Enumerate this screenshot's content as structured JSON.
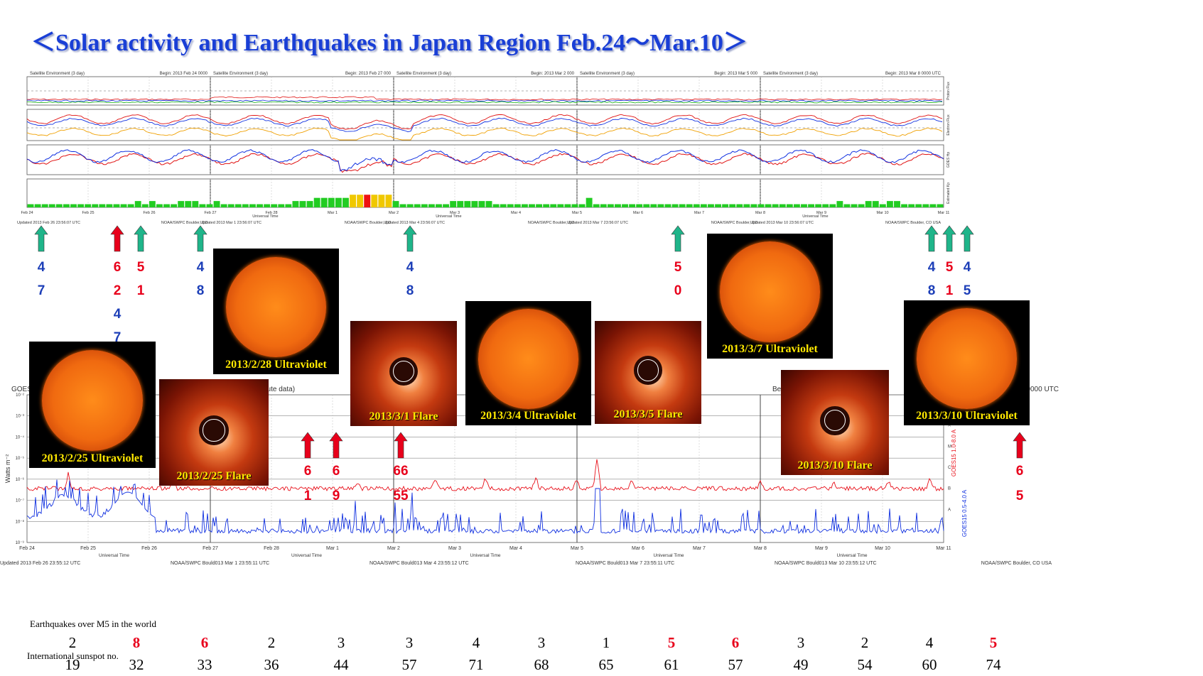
{
  "title": "＜Solar activity and Earthquakes in Japan Region Feb.24～Mar.10＞",
  "colors": {
    "title": "#1a3fd6",
    "eq_red": "#e8001b",
    "eq_blue": "#1d3fb8",
    "arrow_green": "#1fb58a",
    "arrow_red": "#e8001b",
    "caption": "#ffe800"
  },
  "goes_top": {
    "panels": [
      {
        "header_left": "Satellite Environment (3 day)",
        "header_right": "Begin:  2013 Feb 24 0000"
      },
      {
        "header_left": "Satellite Environment (3 day)",
        "header_right": "Begin:  2013 Feb 27 000"
      },
      {
        "header_left": "Satellite Environment (3 day)",
        "header_right": "Begin:  2013 Mar 2 000"
      },
      {
        "header_left": "Satellite Environment (3 day)",
        "header_right": "Begin:  2013 Mar 5 000"
      },
      {
        "header_left": "Satellite Environment (3 day)",
        "header_right": "Begin:  2013 Mar 8 0000 UTC"
      }
    ],
    "right_labels": [
      "Proton Flux",
      "Electron Flux",
      "GOES Hp",
      "Estimated Kp"
    ],
    "date_ticks": [
      "Feb 24",
      "Feb 25",
      "Feb 26",
      "Feb 27",
      "Feb 28",
      "Mar 1",
      "Mar 2",
      "Mar 3",
      "Mar 4",
      "Mar 5",
      "Mar 6",
      "Mar 7",
      "Mar 8",
      "Mar 9",
      "Mar 10",
      "Mar 11"
    ],
    "universal_time": "Universal Time",
    "footer": [
      "Updated 2013 Feb 26 23:56:07 UTC",
      "NOAA/SWPC Boulder, CO",
      "Updated 2013 Mar 1 23:56:07 UTC",
      "NOAA/SWPC Boulder, CO",
      "Updated 2013 Mar 4 23:56:07 UTC",
      "NOAA/SWPC Boulder, CO",
      "Updated 2013 Mar 7 23:56:07 UTC",
      "NOAA/SWPC Boulder, CO",
      "Updated 2013 Mar 10 23:56:07 UTC",
      "NOAA/SWPC Boulder, CO USA"
    ]
  },
  "chart_data": [
    {
      "type": "bar",
      "title": "Estimated Kp",
      "ylim": [
        0,
        9
      ],
      "bar_colors": {
        "low": "#22cc22",
        "mid": "#f0c800",
        "high": "#ee1111"
      },
      "values": [
        1,
        1,
        1,
        1,
        1,
        1,
        1,
        1,
        1,
        1,
        1,
        1,
        1,
        1,
        1,
        2,
        1,
        2,
        1,
        1,
        1,
        2,
        2,
        2,
        1,
        1,
        2,
        1,
        1,
        1,
        1,
        1,
        1,
        1,
        1,
        1,
        1,
        2,
        2,
        2,
        3,
        3,
        3,
        3,
        3,
        4,
        4,
        4,
        4,
        4,
        4,
        2,
        1,
        1,
        1,
        1,
        1,
        1,
        1,
        2,
        2,
        2,
        2,
        2,
        2,
        1,
        1,
        1,
        1,
        1,
        1,
        1,
        1,
        1,
        1,
        1,
        1,
        1,
        3,
        1,
        1,
        1,
        1,
        1,
        1,
        1,
        1,
        1,
        1,
        1,
        1,
        1,
        1,
        1,
        1,
        1,
        1,
        1,
        1,
        1,
        1,
        1,
        1,
        1,
        1,
        1,
        1,
        1,
        1,
        1,
        1,
        1,
        1,
        2,
        1,
        1,
        1,
        2,
        2,
        1,
        2,
        2,
        1,
        1,
        1,
        1,
        1,
        1
      ]
    },
    {
      "type": "line",
      "title": "GOES15 X-ray Flux (5 minute data)",
      "ylabel": "Watts m⁻²",
      "flare_classes": [
        "X",
        "M",
        "C",
        "B",
        "A"
      ],
      "series": [
        {
          "name": "GOES15 1.0-8.0 A",
          "color": "#e8101a"
        },
        {
          "name": "GOES15 0.5-4.0 A",
          "color": "#1030e0"
        }
      ],
      "x": [
        "Feb 24",
        "Feb 25",
        "Feb 26",
        "Feb 27",
        "Feb 28",
        "Mar 1",
        "Mar 2",
        "Mar 3",
        "Mar 4",
        "Mar 5",
        "Mar 6",
        "Mar 7",
        "Mar 8",
        "Mar 9",
        "Mar 10",
        "Mar 11"
      ]
    }
  ],
  "xray_header": [
    "GOES",
    "x (5 minute data)",
    "Fl",
    "ute data)",
    "Beg",
    "min",
    "Begin:  2013 Mar 8 0000 UTC"
  ],
  "xray_ticks_y": [
    "10⁻²",
    "10⁻³",
    "10⁻⁴",
    "10⁻⁵",
    "10⁻⁶",
    "10⁻⁷",
    "10⁻⁸",
    "10⁻⁹"
  ],
  "xray_footer": [
    "Updated 2013 Feb 26 23:55:12 UTC",
    "NOAA/SWPC Bould013 Mar  1 23:55:11 UTC",
    "NOAA/SWPC Bould013 Mar  4 23:55:12 UTC",
    "NOAA/SWPC Bould013 Mar  7 23:55:11 UTC",
    "NOAA/SWPC Bould013 Mar  10 23:55:12 UTC",
    "NOAA/SWPC Boulder, CO USA"
  ],
  "earthquake_marks_top": [
    {
      "arrow": "green",
      "lines": [
        {
          "t": "4",
          "c": "blue"
        },
        {
          "t": "7",
          "c": "blue"
        }
      ]
    },
    {
      "arrow": "red",
      "lines": [
        {
          "t": "6",
          "c": "red"
        },
        {
          "t": "2",
          "c": "red"
        },
        {
          "t": "4",
          "c": "blue"
        },
        {
          "t": "7",
          "c": "blue"
        }
      ]
    },
    {
      "arrow": "green",
      "lines": [
        {
          "t": "5",
          "c": "red"
        },
        {
          "t": "1",
          "c": "red"
        }
      ]
    },
    {
      "arrow": "green",
      "lines": [
        {
          "t": "4",
          "c": "blue"
        },
        {
          "t": "8",
          "c": "blue"
        }
      ]
    },
    {
      "arrow": "green",
      "lines": [
        {
          "t": "4",
          "c": "blue"
        },
        {
          "t": "8",
          "c": "blue"
        }
      ]
    },
    {
      "arrow": "green",
      "lines": [
        {
          "t": "5",
          "c": "red"
        },
        {
          "t": "0",
          "c": "red"
        }
      ]
    },
    {
      "arrow": "green",
      "lines": [
        {
          "t": "4",
          "c": "blue"
        },
        {
          "t": "8",
          "c": "blue"
        }
      ]
    },
    {
      "arrow": "green",
      "lines": [
        {
          "t": "5",
          "c": "red"
        },
        {
          "t": "1",
          "c": "red"
        }
      ]
    },
    {
      "arrow": "green",
      "lines": [
        {
          "t": "4",
          "c": "blue"
        },
        {
          "t": "5",
          "c": "blue"
        }
      ]
    }
  ],
  "earthquake_marks_bottom": [
    {
      "arrow": "red",
      "lines": [
        {
          "t": "6",
          "c": "red"
        },
        {
          "t": "1",
          "c": "red"
        }
      ]
    },
    {
      "arrow": "red",
      "lines": [
        {
          "t": "6",
          "c": "red"
        },
        {
          "t": "9",
          "c": "red"
        }
      ]
    },
    {
      "arrow": "red",
      "lines": [
        {
          "t": "66",
          "c": "red"
        },
        {
          "t": "55",
          "c": "red"
        }
      ]
    },
    {
      "arrow": "red",
      "lines": [
        {
          "t": "6",
          "c": "red"
        },
        {
          "t": "5",
          "c": "red"
        }
      ]
    }
  ],
  "photos": [
    {
      "caption": "2013/2/25 Ultraviolet",
      "kind": "uv"
    },
    {
      "caption": "2013/2/25 Flare",
      "kind": "flare"
    },
    {
      "caption": "2013/2/28 Ultraviolet",
      "kind": "uv"
    },
    {
      "caption": "2013/3/1 Flare",
      "kind": "flare"
    },
    {
      "caption": "2013/3/4 Ultraviolet",
      "kind": "uv"
    },
    {
      "caption": "2013/3/5 Flare",
      "kind": "flare"
    },
    {
      "caption": "2013/3/7 Ultraviolet",
      "kind": "uv"
    },
    {
      "caption": "2013/3/10 Flare",
      "kind": "flare"
    },
    {
      "caption": "2013/3/10 Ultraviolet",
      "kind": "uv"
    }
  ],
  "table": {
    "eq_label": "Earthquakes over M5 in the world",
    "sunspot_label": "International sunspot no.",
    "earthquakes": [
      2,
      8,
      6,
      2,
      3,
      3,
      4,
      3,
      1,
      5,
      6,
      3,
      2,
      4,
      5
    ],
    "eq_highlight": [
      false,
      true,
      true,
      false,
      false,
      false,
      false,
      false,
      false,
      true,
      true,
      false,
      false,
      false,
      true
    ],
    "sunspots": [
      19,
      32,
      33,
      36,
      44,
      57,
      71,
      68,
      65,
      61,
      57,
      49,
      54,
      60,
      74
    ]
  }
}
